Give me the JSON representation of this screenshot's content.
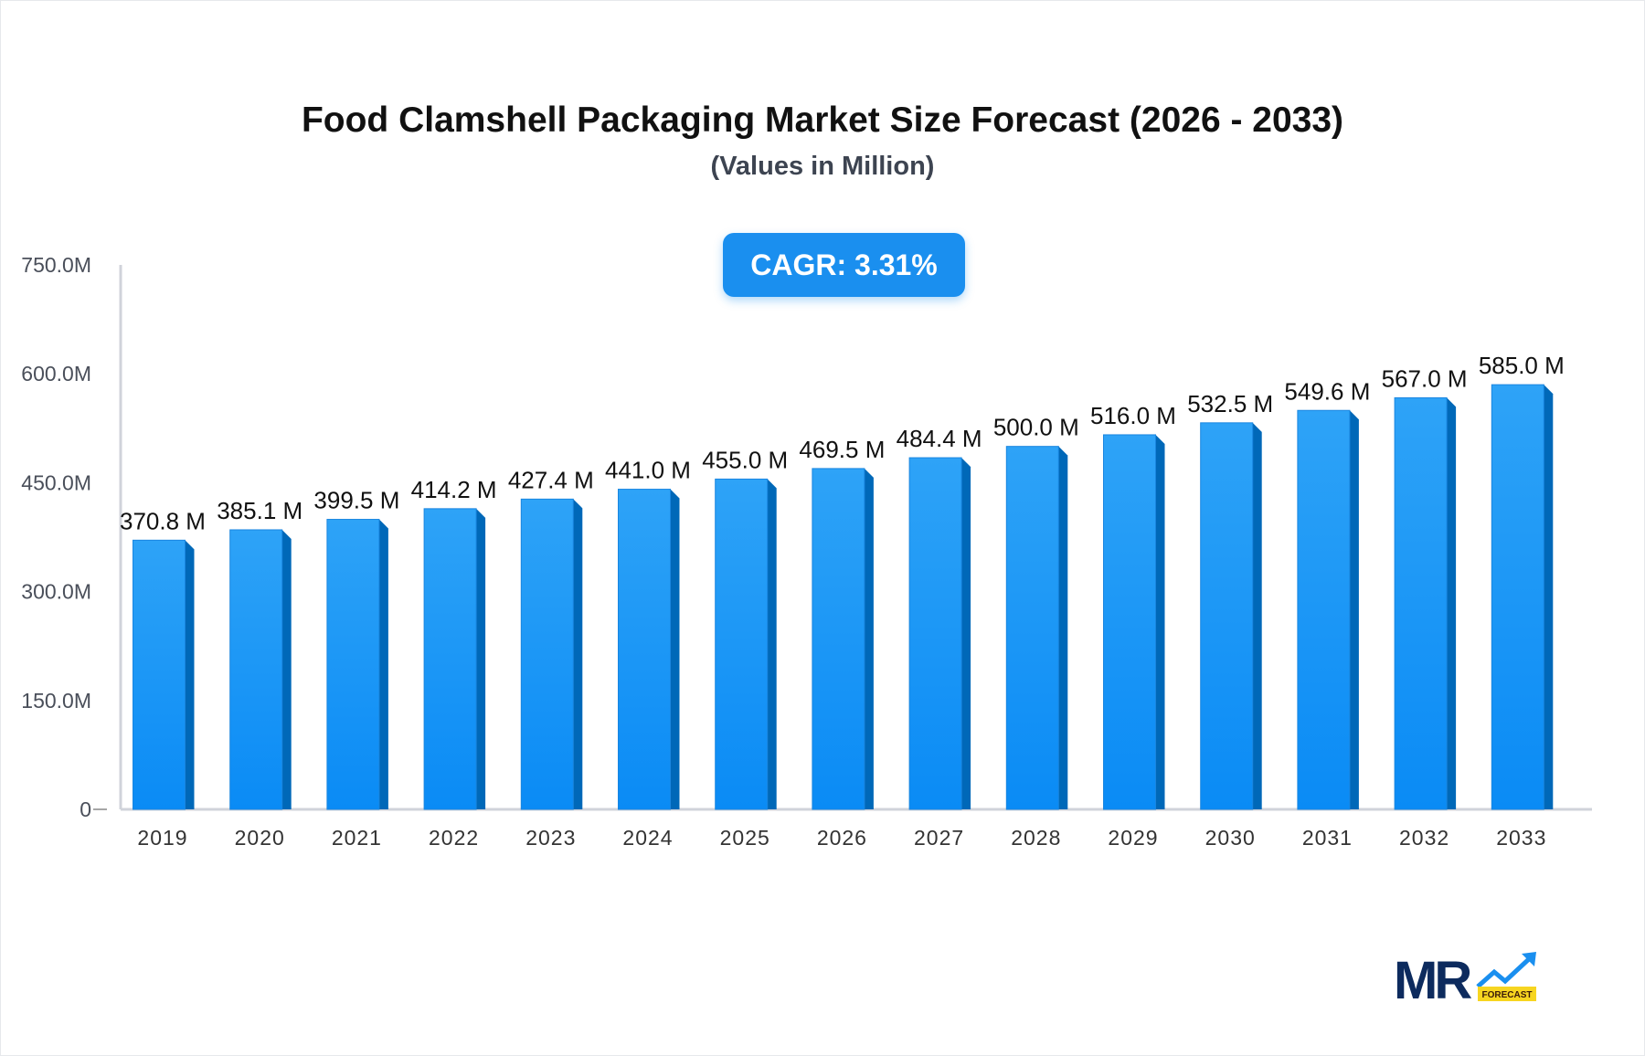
{
  "chart_data": {
    "type": "bar",
    "title": "Food Clamshell Packaging Market Size Forecast (2026 - 2033)",
    "subtitle": "(Values in Million)",
    "annotation": "CAGR: 3.31%",
    "categories": [
      "2019",
      "2020",
      "2021",
      "2022",
      "2023",
      "2024",
      "2025",
      "2026",
      "2027",
      "2028",
      "2029",
      "2030",
      "2031",
      "2032",
      "2033"
    ],
    "values": [
      370.8,
      385.1,
      399.5,
      414.2,
      427.4,
      441.0,
      455.0,
      469.5,
      484.4,
      500.0,
      516.0,
      532.5,
      549.6,
      567.0,
      585.0
    ],
    "data_labels": [
      "370.8 M",
      "385.1 M",
      "399.5 M",
      "414.2 M",
      "427.4 M",
      "441.0 M",
      "455.0 M",
      "469.5 M",
      "484.4 M",
      "500.0 M",
      "516.0 M",
      "532.5 M",
      "549.6 M",
      "567.0 M",
      "585.0 M"
    ],
    "ylim": [
      0,
      750
    ],
    "yticks": [
      0,
      150,
      300,
      450,
      600,
      750
    ],
    "ytick_labels": [
      "0",
      "150.0M",
      "300.0M",
      "450.0M",
      "600.0M",
      "750.0M"
    ],
    "xlabel": "",
    "ylabel": "",
    "grid": false,
    "legend": "none",
    "colors": {
      "bar_top": "#2ea3f7",
      "bar_bottom": "#0a8bf5",
      "bar_side": "#0068b8",
      "axis": "#d0d3da",
      "cagr_bg": "#1a8fef"
    }
  },
  "logo": {
    "text": "MR",
    "badge": "FORECAST"
  }
}
